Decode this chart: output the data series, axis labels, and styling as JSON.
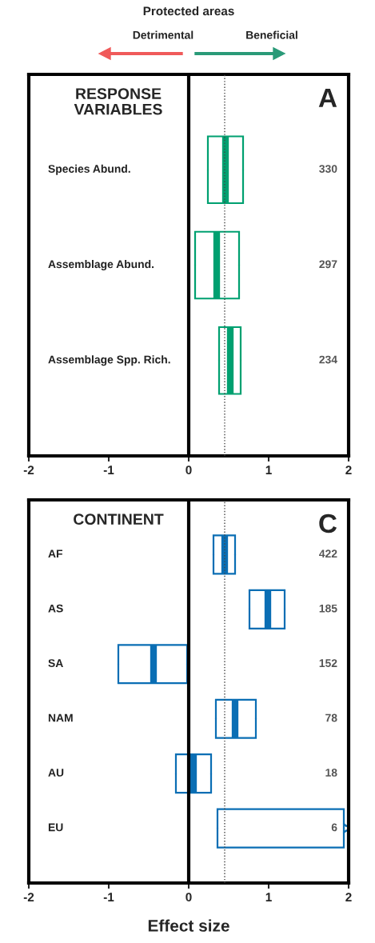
{
  "chart_data": [
    {
      "type": "box",
      "orientation": "horizontal",
      "title": "Protected areas",
      "subtitle": "RESPONSE\nVARIABLES",
      "categories": [
        "Species Abund.",
        "Assemblage Abund.",
        "Assemblage Spp. Rich."
      ],
      "series": [
        {
          "color": "#00a070",
          "boxes": [
            {
              "low": 0.24,
              "q1": 0.24,
              "median": 0.46,
              "q3": 0.68,
              "high": 0.68
            },
            {
              "low": 0.08,
              "q1": 0.08,
              "median": 0.35,
              "q3": 0.63,
              "high": 0.63
            },
            {
              "low": 0.38,
              "q1": 0.38,
              "median": 0.52,
              "q3": 0.65,
              "high": 0.65
            }
          ]
        }
      ],
      "xlim": [
        -2,
        2
      ],
      "xticks": [
        -2,
        -1,
        0,
        1,
        2
      ],
      "ref_lines": [
        {
          "axis": "x",
          "value": 0,
          "color": "#000000",
          "line_style": "solid"
        },
        {
          "axis": "x",
          "value": 0.45,
          "color": "#444444",
          "line_style": "dotted"
        }
      ],
      "annotations": [
        "Detrimental",
        "Beneficial",
        "A",
        "330",
        "297",
        "234"
      ]
    },
    {
      "type": "box",
      "orientation": "horizontal",
      "subtitle": "CONTINENT",
      "xlabel": "Effect size",
      "categories": [
        "AF",
        "AS",
        "SA",
        "NAM",
        "AU",
        "EU"
      ],
      "series": [
        {
          "color": "#0a6eb4",
          "boxes": [
            {
              "low": 0.31,
              "q1": 0.31,
              "median": 0.45,
              "q3": 0.58,
              "high": 0.58
            },
            {
              "low": 0.76,
              "q1": 0.76,
              "median": 0.99,
              "q3": 1.2,
              "high": 1.2
            },
            {
              "low": -0.88,
              "q1": -0.88,
              "median": -0.44,
              "q3": -0.02,
              "high": -0.02
            },
            {
              "low": 0.34,
              "q1": 0.34,
              "median": 0.58,
              "q3": 0.84,
              "high": 0.84
            },
            {
              "low": -0.16,
              "q1": -0.16,
              "median": 0.06,
              "q3": 0.28,
              "high": 0.28
            },
            {
              "low": 0.36,
              "q1": 0.36,
              "median": null,
              "q3": 1.94,
              "high": 1.94
            }
          ]
        }
      ],
      "xlim": [
        -2,
        2
      ],
      "xticks": [
        -2,
        -1,
        0,
        1,
        2
      ],
      "ref_lines": [
        {
          "axis": "x",
          "value": 0,
          "color": "#000000",
          "line_style": "solid"
        },
        {
          "axis": "x",
          "value": 0.45,
          "color": "#444444",
          "line_style": "dotted"
        }
      ],
      "annotations": [
        "C",
        "422",
        "185",
        "152",
        "78",
        "18",
        "6"
      ]
    }
  ]
}
